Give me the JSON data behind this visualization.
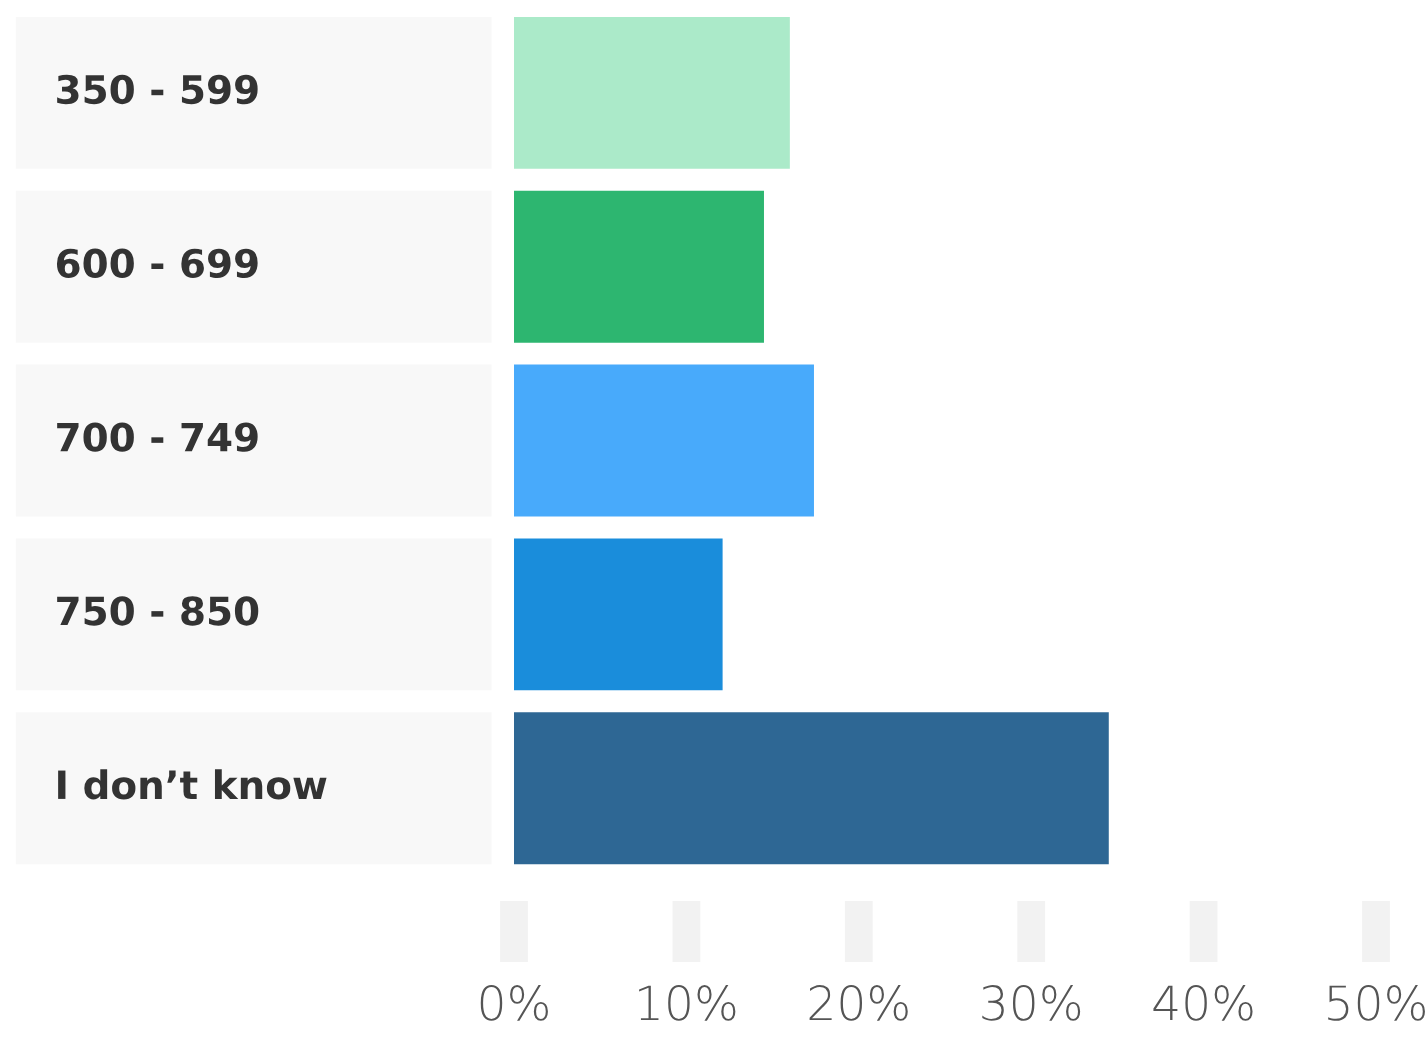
{
  "chart_data": {
    "type": "bar",
    "orientation": "horizontal",
    "categories": [
      "350 - 599",
      "600 - 699",
      "700 - 749",
      "750 - 850",
      "I don’t know"
    ],
    "values": [
      16,
      14.5,
      17.4,
      12.1,
      34.5
    ],
    "colors": [
      "#abeac9",
      "#2db670",
      "#48aafb",
      "#1a8ddb",
      "#2e6794"
    ],
    "xlim": [
      0,
      50
    ],
    "xticks": [
      {
        "value": 0,
        "label": "0%"
      },
      {
        "value": 10,
        "label": "10%"
      },
      {
        "value": 20,
        "label": "20%"
      },
      {
        "value": 30,
        "label": "30%"
      },
      {
        "value": 40,
        "label": "40%"
      },
      {
        "value": 50,
        "label": "50%"
      }
    ],
    "grid": false,
    "legend": false
  }
}
